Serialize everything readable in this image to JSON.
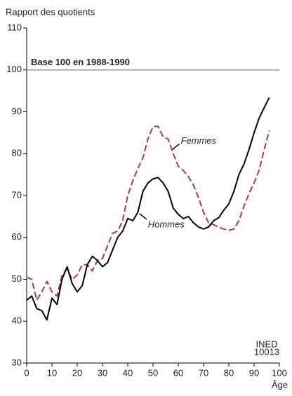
{
  "chart_data": {
    "type": "line",
    "y_label": "Rapport des quotients",
    "x_label": "Âge",
    "reference": {
      "value": 100,
      "label": "Base 100 en 1988-1990",
      "color": "#aaaaaa"
    },
    "annotations": [
      {
        "text": "Femmes",
        "x": 61,
        "y": 83
      },
      {
        "text": "Hommes",
        "x": 48,
        "y": 63
      }
    ],
    "source": [
      "INED",
      "10013"
    ],
    "x": [
      0,
      2,
      4,
      6,
      8,
      10,
      12,
      14,
      16,
      18,
      20,
      22,
      24,
      26,
      28,
      30,
      32,
      34,
      36,
      38,
      40,
      42,
      44,
      46,
      48,
      50,
      52,
      54,
      56,
      58,
      60,
      62,
      64,
      66,
      68,
      70,
      72,
      74,
      76,
      78,
      80,
      82,
      84,
      86,
      88,
      90,
      92,
      94,
      96
    ],
    "series": [
      {
        "name": "Hommes",
        "color": "#000000",
        "dashed": false,
        "values": [
          45,
          46,
          43,
          42.5,
          40.3,
          45.5,
          44,
          50,
          53,
          49,
          47,
          48.5,
          53.5,
          55.5,
          54.5,
          53,
          54,
          57,
          60,
          61.5,
          64.5,
          64,
          66,
          71,
          73,
          74,
          74.3,
          73,
          71,
          67,
          65.5,
          64.5,
          65,
          63.5,
          62.5,
          62,
          62.5,
          64,
          64.7,
          66.5,
          68,
          71,
          75,
          77.5,
          81,
          85,
          88.5,
          91,
          93.4
        ]
      },
      {
        "name": "Femmes",
        "color": "#b5383e",
        "dashed": true,
        "values": [
          50.5,
          50,
          45,
          47,
          49.5,
          47,
          46,
          51,
          52.5,
          50,
          51,
          53.5,
          53.5,
          52,
          54.5,
          55,
          58,
          61,
          61.5,
          64,
          70,
          73.5,
          76.5,
          79,
          83.5,
          86.5,
          86.5,
          84,
          83.5,
          80,
          77,
          76,
          74.5,
          72.5,
          69.5,
          66,
          63.5,
          63,
          62.5,
          62,
          61.7,
          62,
          64,
          67.5,
          70.5,
          73,
          76,
          81,
          85.5
        ]
      }
    ],
    "xlim": [
      0,
      100
    ],
    "ylim": [
      30,
      110
    ],
    "xticks": [
      0,
      10,
      20,
      30,
      40,
      50,
      60,
      70,
      80,
      90,
      100
    ],
    "yticks": [
      30,
      40,
      50,
      60,
      70,
      80,
      90,
      100,
      110
    ]
  }
}
